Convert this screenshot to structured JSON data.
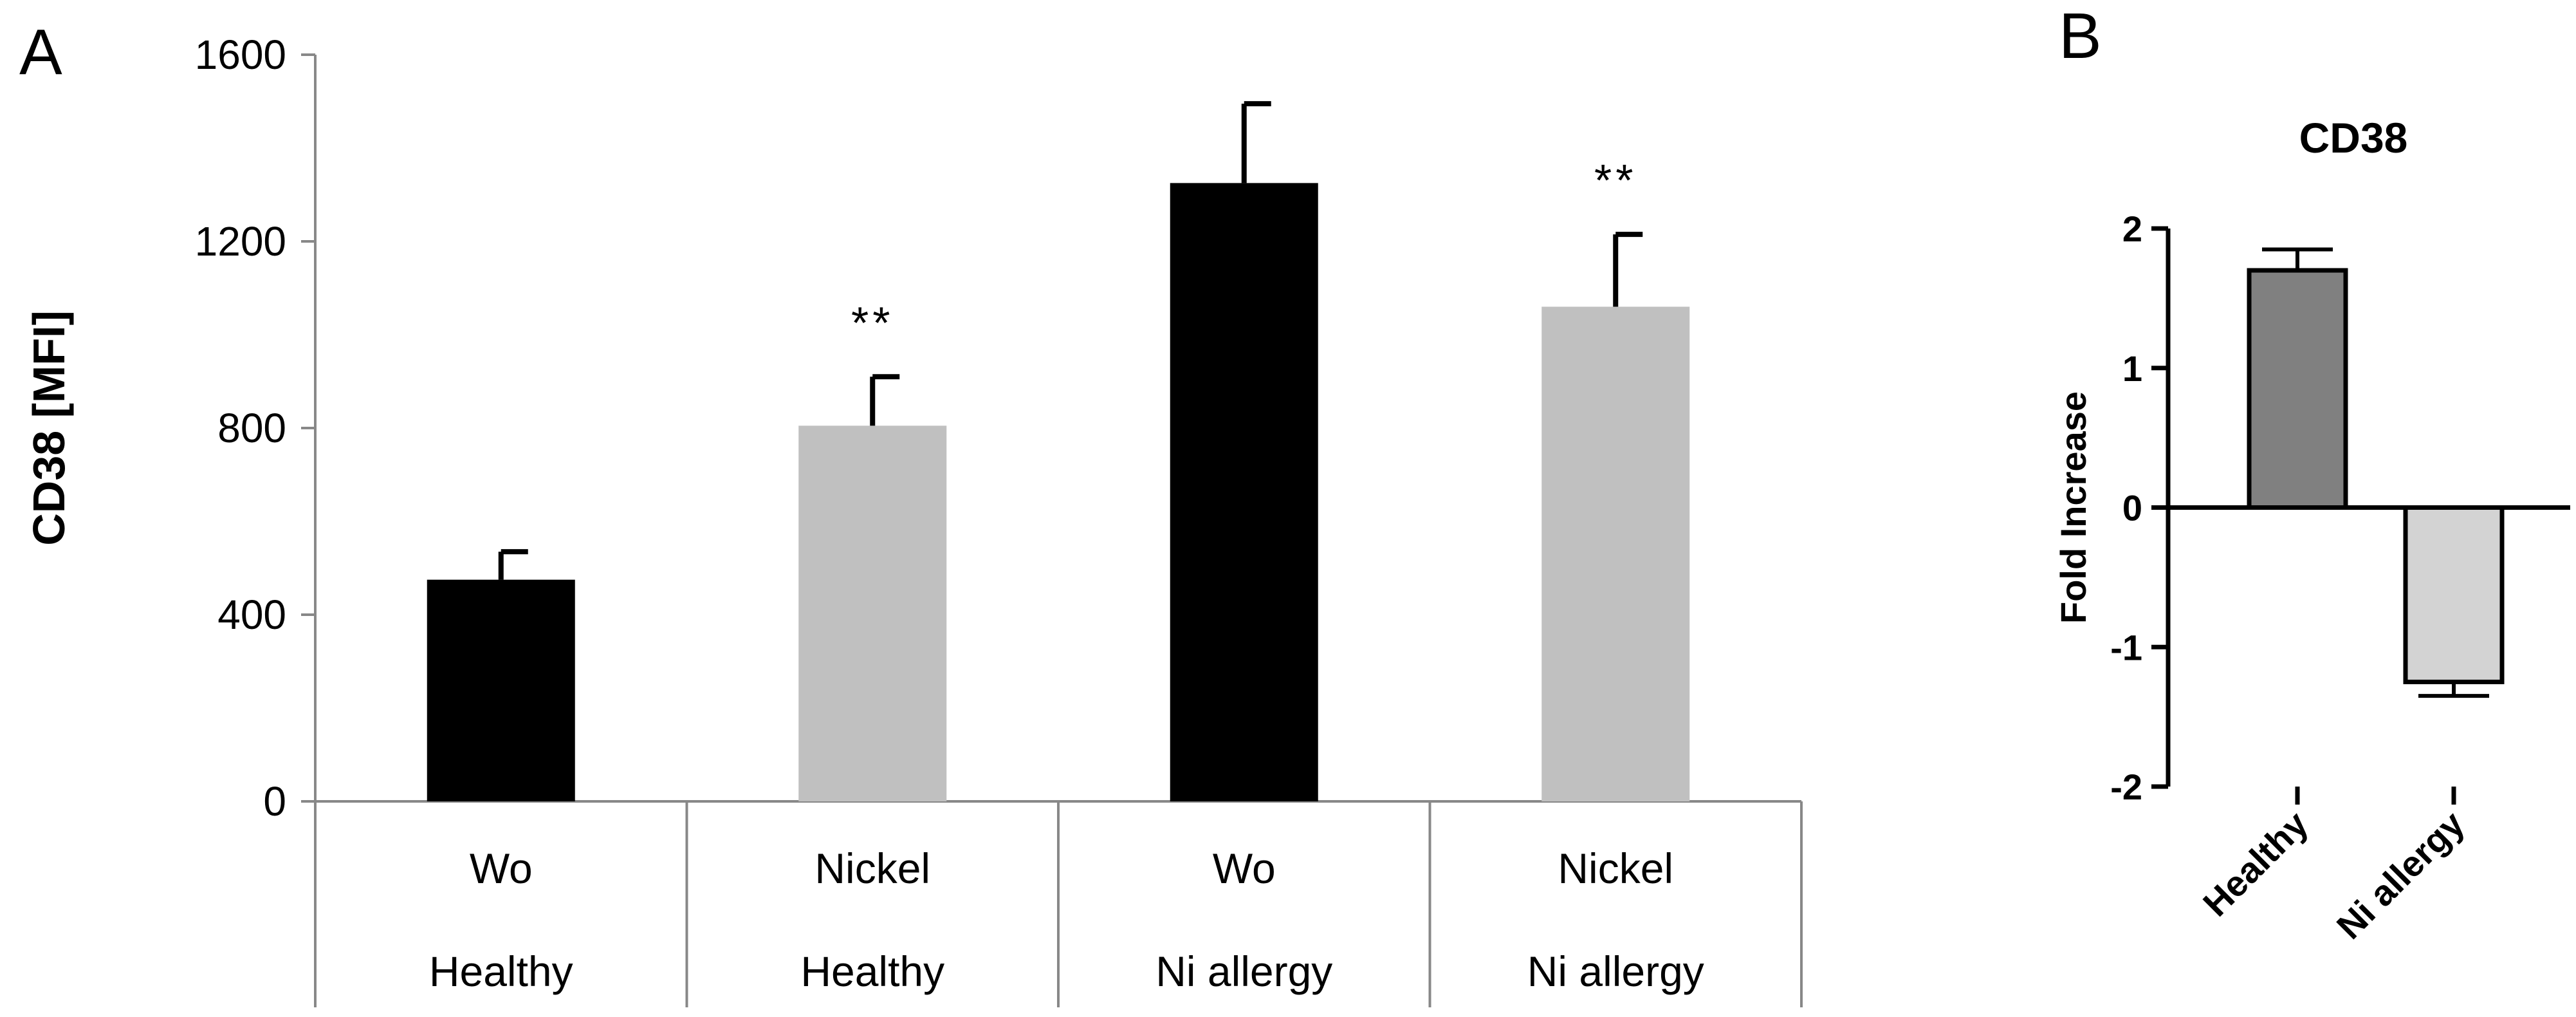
{
  "panels": {
    "a_label": "A",
    "b_label": "B"
  },
  "chart_data": [
    {
      "panel": "A",
      "type": "bar",
      "title": "",
      "ylabel": "CD38 [MFI]",
      "xlabel": "",
      "ylim": [
        0,
        1600
      ],
      "yticks": [
        "1600",
        "1200",
        "800",
        "400",
        "0"
      ],
      "yticks_values": [
        1600,
        1200,
        800,
        400,
        0
      ],
      "categories": [
        {
          "treatment": "Wo",
          "group": "Healthy"
        },
        {
          "treatment": "Nickel",
          "group": "Healthy"
        },
        {
          "treatment": "Wo",
          "group": "Ni allergy"
        },
        {
          "treatment": "Nickel",
          "group": "Ni allergy"
        }
      ],
      "values": [
        475,
        805,
        1325,
        1060
      ],
      "errors": [
        60,
        105,
        170,
        155
      ],
      "annotations": [
        "",
        "**",
        "",
        "**"
      ],
      "bar_colors": [
        "#000000",
        "#c0c0c0",
        "#000000",
        "#c0c0c0"
      ],
      "grid": false
    },
    {
      "panel": "B",
      "type": "bar",
      "title": "CD38",
      "ylabel": "Fold Increase",
      "xlabel": "",
      "ylim": [
        -2,
        2
      ],
      "yticks": [
        "2",
        "1",
        "0",
        "-1",
        "-2"
      ],
      "yticks_values": [
        2,
        1,
        0,
        -1,
        -2
      ],
      "categories": [
        "Healthy",
        "Ni allergy"
      ],
      "values": [
        1.7,
        -1.25
      ],
      "errors": [
        0.15,
        0.1
      ],
      "bar_colors": [
        "#808080",
        "#d3d3d3"
      ],
      "grid": false
    }
  ]
}
